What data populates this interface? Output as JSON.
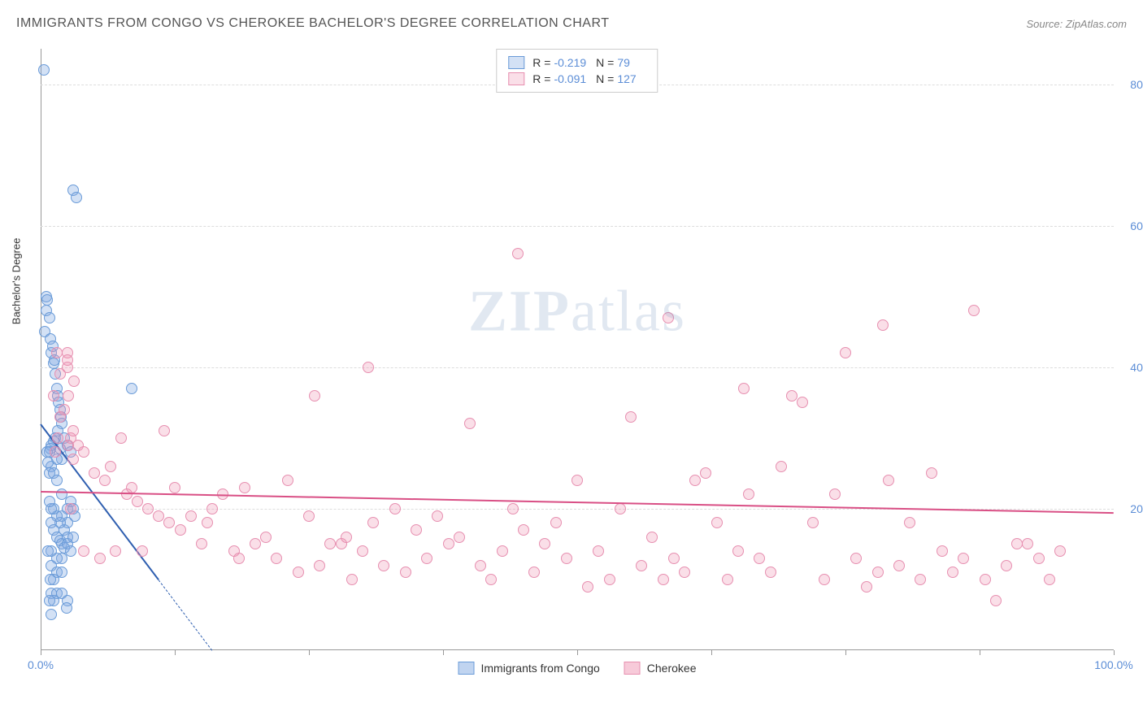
{
  "header": {
    "title": "IMMIGRANTS FROM CONGO VS CHEROKEE BACHELOR'S DEGREE CORRELATION CHART",
    "source": "Source: ZipAtlas.com"
  },
  "chart": {
    "type": "scatter",
    "ylabel": "Bachelor's Degree",
    "xlim": [
      0,
      100
    ],
    "ylim": [
      0,
      85
    ],
    "xtick_positions": [
      0,
      12.5,
      25,
      37.5,
      50,
      62.5,
      75,
      87.5,
      100
    ],
    "xtick_labels": {
      "0": "0.0%",
      "100": "100.0%"
    },
    "ytick_positions": [
      20,
      40,
      60,
      80
    ],
    "ytick_labels": {
      "20": "20.0%",
      "40": "40.0%",
      "60": "60.0%",
      "80": "80.0%"
    },
    "gridline_color": "#dddddd",
    "axis_color": "#999999",
    "background_color": "#ffffff",
    "tick_label_color": "#5b8dd6",
    "watermark": {
      "text_bold": "ZIP",
      "text_rest": "atlas"
    },
    "series": [
      {
        "id": "congo",
        "label": "Immigrants from Congo",
        "marker_fill": "rgba(130,170,225,0.35)",
        "marker_stroke": "#6a9bd8",
        "trend_color": "#2f5fb0",
        "trend": {
          "x1": 0,
          "y1": 32,
          "x2": 11,
          "y2": 10,
          "dash_x2": 16,
          "dash_y2": 0
        },
        "R": "-0.219",
        "N": "79",
        "points": [
          [
            0.3,
            82
          ],
          [
            0.4,
            45
          ],
          [
            0.5,
            48
          ],
          [
            0.5,
            50
          ],
          [
            0.6,
            49.5
          ],
          [
            0.8,
            47
          ],
          [
            1.0,
            42
          ],
          [
            1.2,
            40.5
          ],
          [
            1.3,
            41
          ],
          [
            0.9,
            44
          ],
          [
            1.1,
            43
          ],
          [
            1.4,
            39
          ],
          [
            1.5,
            37
          ],
          [
            1.6,
            36
          ],
          [
            1.7,
            35
          ],
          [
            1.8,
            34
          ],
          [
            1.9,
            33
          ],
          [
            2.0,
            32
          ],
          [
            1.6,
            31
          ],
          [
            1.4,
            30
          ],
          [
            1.2,
            29.5
          ],
          [
            1.0,
            29
          ],
          [
            0.9,
            28.5
          ],
          [
            0.8,
            28
          ],
          [
            2.2,
            30
          ],
          [
            2.5,
            29
          ],
          [
            2.8,
            28
          ],
          [
            2.0,
            27
          ],
          [
            1.8,
            28.5
          ],
          [
            1.5,
            27
          ],
          [
            1.0,
            26
          ],
          [
            0.8,
            25
          ],
          [
            0.6,
            28
          ],
          [
            0.7,
            26.5
          ],
          [
            1.2,
            25
          ],
          [
            1.5,
            24
          ],
          [
            2.0,
            22
          ],
          [
            2.5,
            20
          ],
          [
            2.8,
            21
          ],
          [
            3.0,
            20
          ],
          [
            3.2,
            19
          ],
          [
            2.5,
            18
          ],
          [
            2.0,
            19
          ],
          [
            2.2,
            17
          ],
          [
            1.8,
            18
          ],
          [
            1.5,
            19
          ],
          [
            1.2,
            20
          ],
          [
            1.0,
            20
          ],
          [
            0.8,
            21
          ],
          [
            1.0,
            18
          ],
          [
            1.2,
            17
          ],
          [
            1.5,
            16
          ],
          [
            1.8,
            15.5
          ],
          [
            2.0,
            15
          ],
          [
            2.2,
            14.5
          ],
          [
            2.5,
            16
          ],
          [
            2.5,
            15
          ],
          [
            2.8,
            14
          ],
          [
            3.0,
            16
          ],
          [
            2.0,
            13
          ],
          [
            1.5,
            13
          ],
          [
            1.0,
            14
          ],
          [
            0.7,
            14
          ],
          [
            1.0,
            12
          ],
          [
            1.5,
            11
          ],
          [
            2.0,
            11
          ],
          [
            1.2,
            10
          ],
          [
            0.9,
            10
          ],
          [
            1.0,
            8
          ],
          [
            1.5,
            8
          ],
          [
            1.2,
            7
          ],
          [
            0.8,
            7
          ],
          [
            1.0,
            5
          ],
          [
            2.0,
            8
          ],
          [
            2.5,
            7
          ],
          [
            2.4,
            6
          ],
          [
            8.5,
            37
          ],
          [
            3.0,
            65
          ],
          [
            3.3,
            64
          ]
        ]
      },
      {
        "id": "cherokee",
        "label": "Cherokee",
        "marker_fill": "rgba(240,150,180,0.30)",
        "marker_stroke": "#e78fb0",
        "trend_color": "#d94f85",
        "trend": {
          "x1": 0,
          "y1": 22.5,
          "x2": 100,
          "y2": 19.5
        },
        "R": "-0.091",
        "N": "127",
        "points": [
          [
            2.5,
            40
          ],
          [
            2.5,
            42
          ],
          [
            2.8,
            30
          ],
          [
            3.0,
            27
          ],
          [
            3.5,
            29
          ],
          [
            4.0,
            28
          ],
          [
            4.0,
            14
          ],
          [
            5.0,
            25
          ],
          [
            6.0,
            24
          ],
          [
            6.5,
            26
          ],
          [
            7.5,
            30
          ],
          [
            8.0,
            22
          ],
          [
            8.5,
            23
          ],
          [
            9.0,
            21
          ],
          [
            10.0,
            20
          ],
          [
            11.0,
            19
          ],
          [
            12.0,
            18
          ],
          [
            12.5,
            23
          ],
          [
            13.0,
            17
          ],
          [
            14.0,
            19
          ],
          [
            15.0,
            15
          ],
          [
            15.5,
            18
          ],
          [
            16.0,
            20
          ],
          [
            17.0,
            22
          ],
          [
            18.0,
            14
          ],
          [
            18.5,
            13
          ],
          [
            19.0,
            23
          ],
          [
            20.0,
            15
          ],
          [
            21.0,
            16
          ],
          [
            22.0,
            13
          ],
          [
            23.0,
            24
          ],
          [
            24.0,
            11
          ],
          [
            25.0,
            19
          ],
          [
            25.5,
            36
          ],
          [
            26.0,
            12
          ],
          [
            27.0,
            15
          ],
          [
            28.0,
            15
          ],
          [
            28.5,
            16
          ],
          [
            29.0,
            10
          ],
          [
            30.0,
            14
          ],
          [
            30.5,
            40
          ],
          [
            31.0,
            18
          ],
          [
            32.0,
            12
          ],
          [
            33.0,
            20
          ],
          [
            34.0,
            11
          ],
          [
            35.0,
            17
          ],
          [
            36.0,
            13
          ],
          [
            37.0,
            19
          ],
          [
            38.0,
            15
          ],
          [
            39.0,
            16
          ],
          [
            40.0,
            32
          ],
          [
            41.0,
            12
          ],
          [
            42.0,
            10
          ],
          [
            43.0,
            14
          ],
          [
            44.0,
            20
          ],
          [
            44.5,
            56
          ],
          [
            45.0,
            17
          ],
          [
            46.0,
            11
          ],
          [
            47.0,
            15
          ],
          [
            48.0,
            18
          ],
          [
            49.0,
            13
          ],
          [
            50.0,
            24
          ],
          [
            51.0,
            9
          ],
          [
            52.0,
            14
          ],
          [
            53.0,
            10
          ],
          [
            54.0,
            20
          ],
          [
            55.0,
            33
          ],
          [
            56.0,
            12
          ],
          [
            57.0,
            16
          ],
          [
            58.0,
            10
          ],
          [
            58.5,
            47
          ],
          [
            59.0,
            13
          ],
          [
            60.0,
            11
          ],
          [
            61.0,
            24
          ],
          [
            62.0,
            25
          ],
          [
            63.0,
            18
          ],
          [
            64.0,
            10
          ],
          [
            65.0,
            14
          ],
          [
            65.5,
            37
          ],
          [
            66.0,
            22
          ],
          [
            67.0,
            13
          ],
          [
            68.0,
            11
          ],
          [
            69.0,
            26
          ],
          [
            70.0,
            36
          ],
          [
            71.0,
            35
          ],
          [
            72.0,
            18
          ],
          [
            73.0,
            10
          ],
          [
            74.0,
            22
          ],
          [
            75.0,
            42
          ],
          [
            76.0,
            13
          ],
          [
            77.0,
            9
          ],
          [
            78.0,
            11
          ],
          [
            78.5,
            46
          ],
          [
            79.0,
            24
          ],
          [
            80.0,
            12
          ],
          [
            81.0,
            18
          ],
          [
            82.0,
            10
          ],
          [
            83.0,
            25
          ],
          [
            84.0,
            14
          ],
          [
            85.0,
            11
          ],
          [
            86.0,
            13
          ],
          [
            87.0,
            48
          ],
          [
            88.0,
            10
          ],
          [
            89.0,
            7
          ],
          [
            90.0,
            12
          ],
          [
            91.0,
            15
          ],
          [
            92.0,
            15
          ],
          [
            93.0,
            13
          ],
          [
            94.0,
            10
          ],
          [
            95.0,
            14
          ],
          [
            3.1,
            38
          ],
          [
            2.6,
            36
          ],
          [
            2.5,
            41
          ],
          [
            2.6,
            29
          ],
          [
            2.8,
            20
          ],
          [
            3.0,
            31
          ],
          [
            1.5,
            42
          ],
          [
            1.8,
            39
          ],
          [
            1.4,
            28
          ],
          [
            1.6,
            30
          ],
          [
            1.2,
            36
          ],
          [
            1.8,
            33
          ],
          [
            2.2,
            34
          ],
          [
            5.5,
            13
          ],
          [
            7.0,
            14
          ],
          [
            9.5,
            14
          ],
          [
            11.5,
            31
          ]
        ]
      }
    ],
    "legend_bottom": [
      {
        "label": "Immigrants from Congo",
        "fill": "rgba(130,170,225,0.5)",
        "stroke": "#6a9bd8"
      },
      {
        "label": "Cherokee",
        "fill": "rgba(240,150,180,0.5)",
        "stroke": "#e78fb0"
      }
    ]
  }
}
